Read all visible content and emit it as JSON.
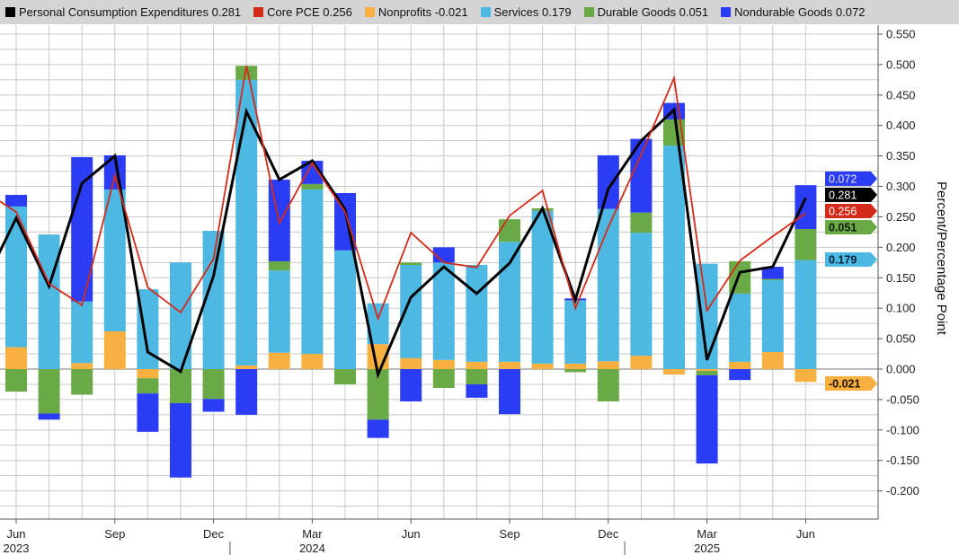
{
  "chart_data": {
    "type": "bar",
    "stacked": true,
    "ylabel": "Percent/Percentage Point",
    "ylim": [
      -0.25,
      0.575
    ],
    "yticks": [
      "0.550",
      "0.500",
      "0.450",
      "0.400",
      "0.350",
      "0.300",
      "0.250",
      "0.200",
      "0.150",
      "0.100",
      "0.050",
      "0.000",
      "-0.050",
      "-0.100",
      "-0.150",
      "-0.200"
    ],
    "grid": true,
    "legend_position": "top",
    "categories": [
      "May 2023",
      "Jun 2023",
      "Jul 2023",
      "Aug 2023",
      "Sep 2023",
      "Oct 2023",
      "Nov 2023",
      "Dec 2023",
      "Jan 2024",
      "Feb 2024",
      "Mar 2024",
      "Apr 2024",
      "May 2024",
      "Jun 2024",
      "Jul 2024",
      "Aug 2024",
      "Sep 2024",
      "Oct 2024",
      "Nov 2024",
      "Dec 2024",
      "Jan 2025",
      "Feb 2025",
      "Mar 2025",
      "Apr 2025",
      "May 2025",
      "Jun 2025"
    ],
    "xtick_labels": [
      {
        "month": "Jun",
        "year": "2023",
        "index": 1
      },
      {
        "month": "Sep",
        "year": "",
        "index": 4
      },
      {
        "month": "Dec",
        "year": "",
        "index": 7
      },
      {
        "month": "Mar",
        "year": "2024",
        "index": 10
      },
      {
        "month": "Jun",
        "year": "",
        "index": 13
      },
      {
        "month": "Sep",
        "year": "",
        "index": 16
      },
      {
        "month": "Dec",
        "year": "",
        "index": 19
      },
      {
        "month": "Mar",
        "year": "2025",
        "index": 22
      },
      {
        "month": "Jun",
        "year": "",
        "index": 25
      }
    ],
    "series": [
      {
        "name": "Nonprofits",
        "kind": "bar",
        "color": "#f8b040",
        "last": "-0.021",
        "values": [
          null,
          0.036,
          0,
          0.01,
          0.062,
          -0.015,
          0,
          0,
          0.006,
          0.027,
          0.025,
          0,
          0.041,
          0.018,
          0.015,
          0.012,
          0.012,
          0.009,
          0.009,
          0.013,
          0.022,
          -0.009,
          -0.003,
          0.012,
          0.028,
          -0.021
        ]
      },
      {
        "name": "Services",
        "kind": "bar",
        "color": "#4db8e2",
        "last": "0.179",
        "values": [
          null,
          0.231,
          0.221,
          0.101,
          0.233,
          0.131,
          0.175,
          0.227,
          0.469,
          0.135,
          0.27,
          0.195,
          0.067,
          0.153,
          0.16,
          0.159,
          0.197,
          0.251,
          0.104,
          0.25,
          0.202,
          0.367,
          0.173,
          0.112,
          0.118,
          0.179
        ]
      },
      {
        "name": "Durable Goods",
        "kind": "bar",
        "color": "#6aaa46",
        "last": "0.051",
        "values": [
          null,
          -0.037,
          -0.073,
          -0.042,
          0,
          -0.025,
          -0.056,
          -0.049,
          0.023,
          0.015,
          0.009,
          -0.025,
          -0.083,
          0.004,
          -0.031,
          -0.025,
          0.037,
          0.004,
          -0.005,
          -0.053,
          0.033,
          0.043,
          -0.007,
          0.053,
          0.002,
          0.051
        ]
      },
      {
        "name": "Nondurable Goods",
        "kind": "bar",
        "color": "#2b3cf5",
        "last": "0.072",
        "values": [
          null,
          0.019,
          -0.01,
          0.237,
          0.056,
          -0.063,
          -0.122,
          -0.021,
          -0.075,
          0.134,
          0.038,
          0.094,
          -0.03,
          -0.053,
          0.025,
          -0.022,
          -0.074,
          0,
          0.003,
          0.088,
          0.121,
          0.027,
          -0.145,
          -0.018,
          0.02,
          0.072
        ]
      },
      {
        "name": "Personal Consumption Expenditures",
        "kind": "line",
        "color": "#000000",
        "last": "0.281",
        "values": [
          0.137,
          0.248,
          0.136,
          0.305,
          0.35,
          0.028,
          -0.004,
          0.153,
          0.423,
          0.311,
          0.342,
          0.262,
          -0.009,
          0.118,
          0.168,
          0.124,
          0.174,
          0.264,
          0.114,
          0.296,
          0.375,
          0.426,
          0.015,
          0.159,
          0.168,
          0.281
        ]
      },
      {
        "name": "Core PCE",
        "kind": "line",
        "color": "#d42a1a",
        "last": "0.256",
        "values": [
          0.293,
          0.258,
          0.14,
          0.105,
          0.318,
          0.134,
          0.093,
          0.181,
          0.498,
          0.24,
          0.338,
          0.258,
          0.083,
          0.224,
          0.175,
          0.167,
          0.252,
          0.293,
          0.1,
          0.233,
          0.352,
          0.478,
          0.096,
          0.178,
          0.218,
          0.256
        ]
      }
    ],
    "legend_order": [
      4,
      5,
      0,
      1,
      2,
      3
    ]
  }
}
